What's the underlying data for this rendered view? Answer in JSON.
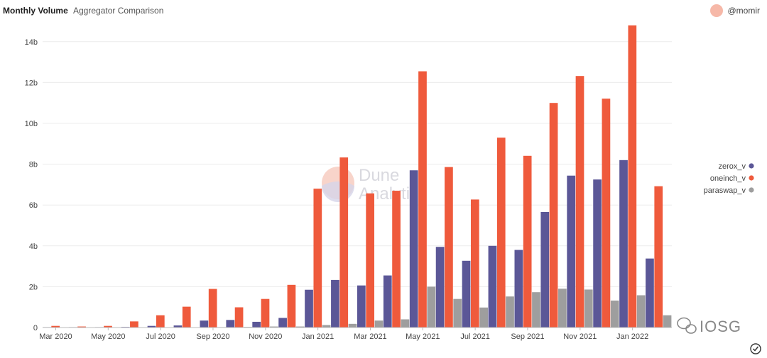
{
  "header": {
    "title": "Monthly Volume",
    "subtitle": "Aggregator Comparison",
    "author": "@momir"
  },
  "watermark": {
    "line1": "Dune",
    "line2": "Analytics"
  },
  "brand": {
    "name": "IOSG"
  },
  "colors": {
    "zerox_v": "#5b5797",
    "oneinch_v": "#ef5a3c",
    "paraswap_v": "#9e9e9e",
    "grid": "#ececec",
    "axis": "#bbbbbb"
  },
  "chart_data": {
    "type": "bar",
    "title": "Monthly Volume",
    "subtitle": "Aggregator Comparison",
    "categories": [
      "Mar 2020",
      "Apr 2020",
      "May 2020",
      "Jun 2020",
      "Jul 2020",
      "Aug 2020",
      "Sep 2020",
      "Oct 2020",
      "Nov 2020",
      "Dec 2020",
      "Jan 2021",
      "Feb 2021",
      "Mar 2021",
      "Apr 2021",
      "May 2021",
      "Jun 2021",
      "Jul 2021",
      "Aug 2021",
      "Sep 2021",
      "Oct 2021",
      "Nov 2021",
      "Dec 2021",
      "Jan 2022",
      "Feb 2022"
    ],
    "x_tick_labels": [
      "Mar 2020",
      "May 2020",
      "Jul 2020",
      "Sep 2020",
      "Nov 2020",
      "Jan 2021",
      "Mar 2021",
      "May 2021",
      "Jul 2021",
      "Sep 2021",
      "Nov 2021",
      "Jan 2022"
    ],
    "y_ticks": [
      0,
      2,
      4,
      6,
      8,
      10,
      12,
      14
    ],
    "y_tick_labels": [
      "0",
      "2b",
      "4b",
      "6b",
      "8b",
      "10b",
      "12b",
      "14b"
    ],
    "ylim": [
      0,
      15
    ],
    "unit": "b",
    "legend_position": "right",
    "grid": true,
    "series": [
      {
        "name": "zerox_v",
        "values": [
          0.02,
          0.02,
          0.02,
          0.03,
          0.08,
          0.1,
          0.34,
          0.37,
          0.28,
          0.47,
          1.85,
          2.33,
          2.06,
          2.55,
          7.7,
          3.95,
          3.27,
          4.0,
          3.8,
          5.66,
          7.44,
          7.25,
          8.2,
          3.38
        ]
      },
      {
        "name": "oneinch_v",
        "values": [
          0.08,
          0.05,
          0.08,
          0.3,
          0.6,
          1.02,
          1.89,
          0.99,
          1.4,
          2.09,
          6.8,
          8.33,
          6.57,
          6.7,
          12.55,
          7.86,
          6.27,
          9.3,
          8.41,
          11.0,
          12.32,
          11.21,
          14.8,
          6.92
        ]
      },
      {
        "name": "paraswap_v",
        "values": [
          0.0,
          0.0,
          0.0,
          0.0,
          0.0,
          0.0,
          0.02,
          0.03,
          0.05,
          0.05,
          0.12,
          0.18,
          0.34,
          0.4,
          2.0,
          1.4,
          0.98,
          1.52,
          1.73,
          1.9,
          1.86,
          1.32,
          1.58,
          0.6
        ]
      }
    ]
  }
}
